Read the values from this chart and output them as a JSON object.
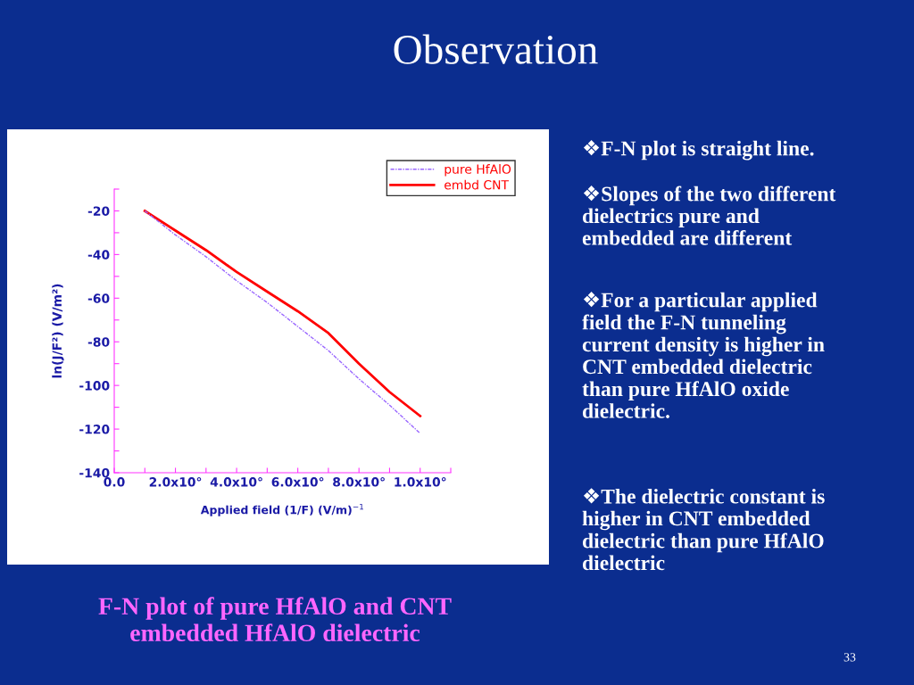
{
  "chart_data": {
    "type": "line",
    "title": "Observation",
    "xlabel": "Applied field (1/F) (V/m)$^{−1}$",
    "ylabel": "ln(J/F²) (V/m²)",
    "series": [
      {
        "name": "pure HfAlO",
        "color": "#9966ff",
        "line_style": "dashdot",
        "values": [
          null,
          -20,
          -31,
          -41,
          -52,
          -62,
          -73,
          -84,
          -97,
          -109,
          -122,
          null
        ]
      },
      {
        "name": "embd CNT",
        "color": "#ff0000",
        "line_style": "solid",
        "values": [
          null,
          -20,
          -29,
          -38,
          -48,
          -57,
          -66,
          -76,
          -90,
          -103,
          -114,
          null
        ]
      }
    ],
    "categories": [
      "0.0",
      null,
      "2.0x10°",
      null,
      "4.0x10°",
      null,
      "6.0x10°",
      null,
      "8.0x10°",
      null,
      "1.0x10°",
      null
    ],
    "ylim": [
      -140,
      -10
    ],
    "yticks": [
      -140,
      {
        "value": -130,
        "label": null
      },
      -120,
      {
        "value": -110,
        "label": null
      },
      -100,
      {
        "value": -90,
        "label": null
      },
      -80,
      {
        "value": -70,
        "label": null
      },
      -60,
      {
        "value": -50,
        "label": null
      },
      -40,
      {
        "value": -30,
        "label": null
      },
      -20,
      {
        "value": -10,
        "label": null
      }
    ],
    "grid": false,
    "legend": "top right",
    "marker": "none",
    "annotations": [
      "F-N plot of pure HfAlO and CNT\nembedded HfAlO dielectric",
      "❖F-N plot is straight line.",
      "❖Slopes of the two different\ndielectrics pure and\nembedded are different",
      "❖For a particular applied\nfield the F-N tunneling\ncurrent density is higher in\nCNT embedded dielectric\nthan pure HfAlO oxide\ndielectric.",
      "❖The dielectric constant is\nhigher in CNT embedded\ndielectric than pure HfAlO\ndielectric",
      "33"
    ]
  }
}
